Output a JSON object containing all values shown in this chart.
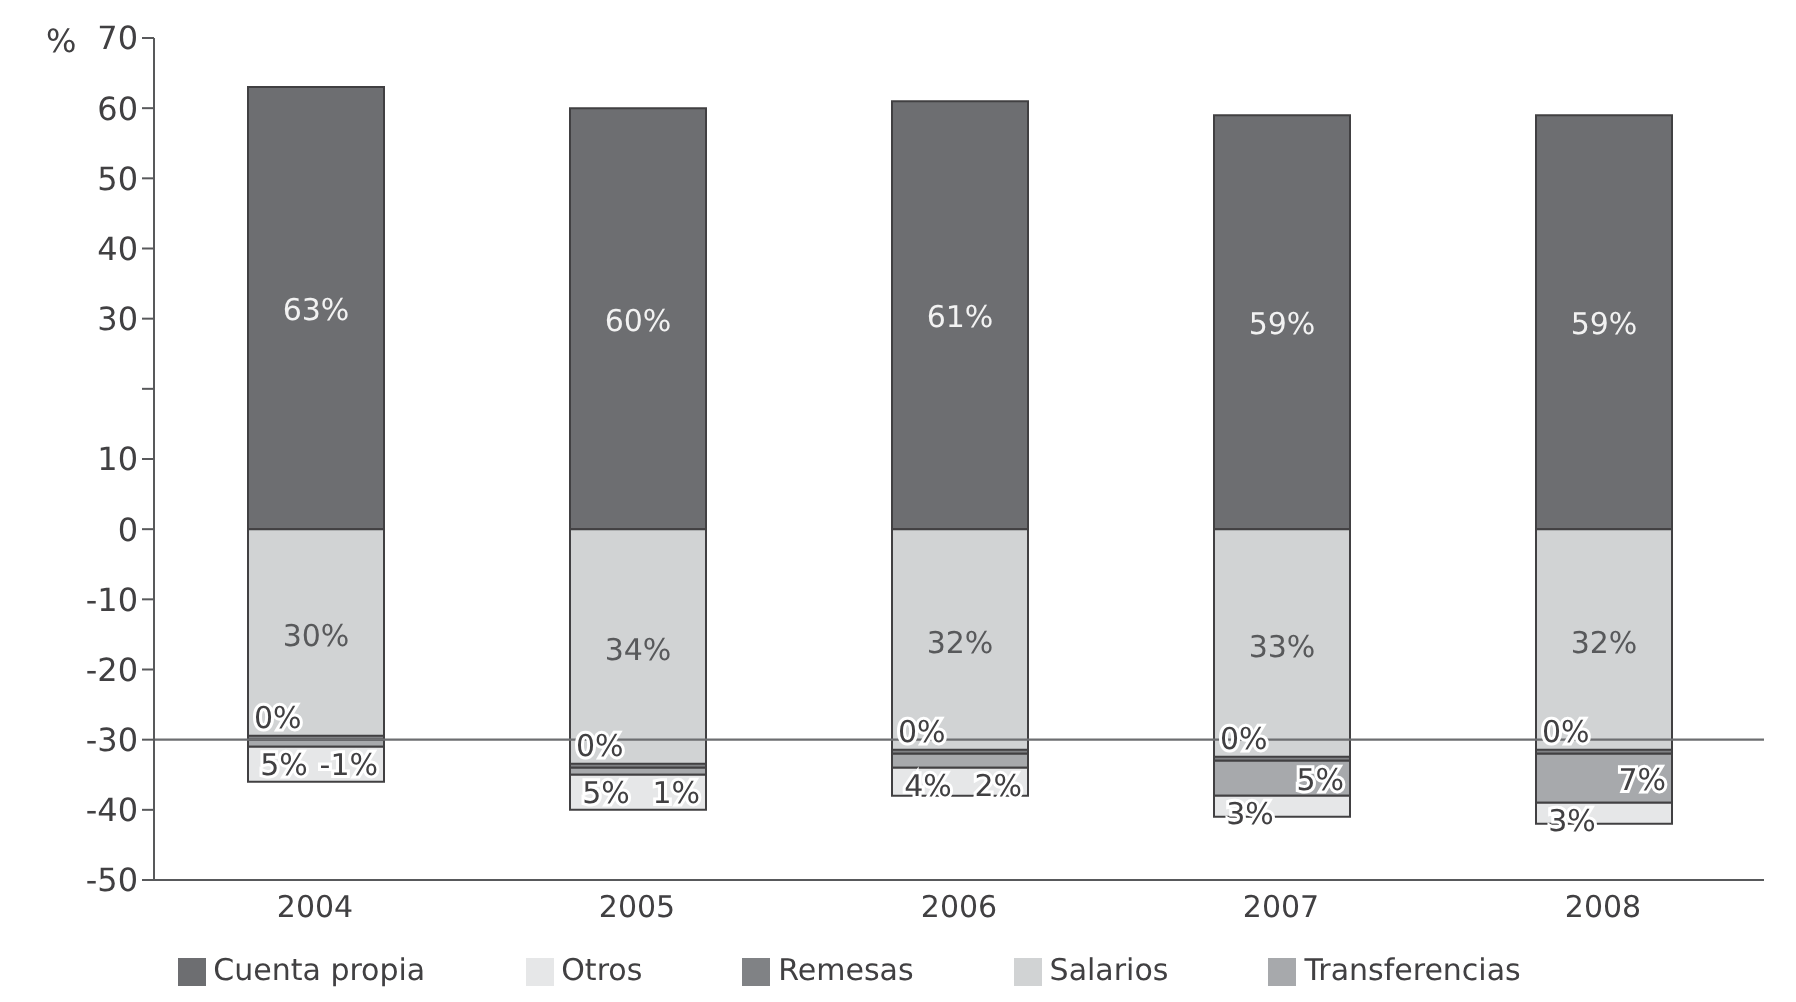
{
  "chart_data": {
    "type": "bar",
    "ylabel": "%",
    "categories": [
      "2004",
      "2005",
      "2006",
      "2007",
      "2008"
    ],
    "series": [
      {
        "name": "Cuenta propia",
        "color": "#6d6e71",
        "values": [
          63,
          60,
          61,
          59,
          59
        ],
        "base": [
          0,
          0,
          0,
          0,
          0
        ],
        "value_labels": [
          "63%",
          "60%",
          "61%",
          "59%",
          "59%"
        ]
      },
      {
        "name": "Salarios",
        "color": "#d1d3d4",
        "values": [
          30,
          34,
          32,
          33,
          32
        ],
        "base": [
          -30,
          -34,
          -32,
          -33,
          -32
        ],
        "value_labels": [
          "30%",
          "34%",
          "32%",
          "33%",
          "32%"
        ]
      },
      {
        "name": "Remesas",
        "color": "#808285",
        "values": [
          0,
          0,
          0,
          0,
          0
        ],
        "base": [
          -30,
          -34,
          -32,
          -33,
          -32
        ],
        "value_labels": [
          "0%",
          "0%",
          "0%",
          "0%",
          "0%"
        ]
      },
      {
        "name": "Transferencias",
        "color": "#a7a9ac",
        "values": [
          -1,
          1,
          2,
          5,
          7
        ],
        "base": [
          -30,
          -35,
          -34,
          -38,
          -39
        ],
        "value_labels": [
          "-1%",
          "1%",
          "2%",
          "5%",
          "7%"
        ]
      },
      {
        "name": "Otros",
        "color": "#e6e7e8",
        "values": [
          5,
          5,
          4,
          3,
          3
        ],
        "base": [
          -36,
          -40,
          -38,
          -41,
          -42
        ],
        "value_labels": [
          "5%",
          "5%",
          "4%",
          "3%",
          "3%"
        ]
      }
    ],
    "ylim": [
      -50,
      70
    ],
    "yticks": [
      -50,
      -40,
      -30,
      -20,
      -10,
      0,
      10,
      {
        "value": 20,
        "label": null
      },
      30,
      40,
      50,
      60,
      70
    ],
    "ref_lines": [
      {
        "axis": "y",
        "value": -30,
        "color": "#6d6e71"
      }
    ],
    "grid": false,
    "legend": "bottom"
  }
}
